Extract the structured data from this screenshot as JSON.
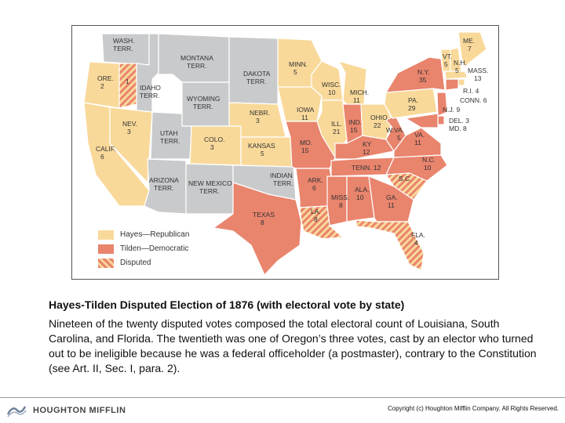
{
  "map": {
    "states": {
      "wash": "WASH.\nTERR.",
      "ore": "ORE.\n2",
      "ore_disputed": "1",
      "idaho": "IDAHO\nTERR.",
      "montana": "MONTANA\nTERR.",
      "wyoming": "WYOMING\nTERR.",
      "dakota": "DAKOTA\nTERR.",
      "calif": "CALIF.\n6",
      "nev": "NEV.\n3",
      "utah": "UTAH\nTERR.",
      "colo": "COLO.\n3",
      "nebr": "NEBR.\n3",
      "kansas": "KANSAS\n5",
      "minn": "MINN.\n5",
      "iowa": "IOWA\n11",
      "wisc": "WISC.\n10",
      "mich": "MICH.\n11",
      "ill": "ILL.\n21",
      "ind": "IND.\n15",
      "ohio": "OHIO\n22",
      "mo": "MO.\n15",
      "ky": "KY\n12",
      "wva": "W.VA.\n5",
      "va": "VA.\n11",
      "pa": "PA.\n29",
      "ny": "N.Y.\n35",
      "vt": "VT.\n5",
      "nh": "N.H.\n5",
      "me": "ME.\n7",
      "mass": "MASS.\n13",
      "ri": "R.I. 4",
      "conn": "CONN. 6",
      "nj": "N.J. 9",
      "del": "DEL. 3",
      "md": "MD. 8",
      "nc": "N.C.\n10",
      "sc": "S.C.",
      "tenn": "TENN. 12",
      "ark": "ARK.\n6",
      "miss": "MISS.\n8",
      "ala": "ALA.\n10",
      "ga": "GA.\n11",
      "fla": "FLA.\n4",
      "la": "LA.\n8",
      "texas": "TEXAS\n8",
      "indian": "INDIAN\nTERR.",
      "arizona": "ARIZONA\nTERR.",
      "newmexico": "NEW MEXICO\nTERR."
    },
    "legend": {
      "hayes": "Hayes—Republican",
      "tilden": "Tilden—Democratic",
      "disputed": "Disputed"
    },
    "colors": {
      "republican": "#f9d99a",
      "democratic": "#e9846d",
      "territory": "#c9cacc",
      "disputed_stripe": "#e9846d"
    }
  },
  "title": "Hayes-Tilden Disputed Election of 1876 (with electoral vote by state)",
  "caption": "Nineteen of the twenty disputed votes composed the total electoral count of Louisiana, South Carolina, and Florida. The twentieth was one of Oregon’s three votes, cast by an elector who turned out to be ineligible because he was a federal officeholder (a postmaster), contrary to the Constitution (see Art. II, Sec. I, para. 2).",
  "footer": {
    "logo_text": "HOUGHTON MIFFLIN",
    "logo_icon": "houghton-mifflin-logo-icon",
    "copyright": "Copyright (c) Houghton Mifflin Company. All Rights Reserved."
  }
}
